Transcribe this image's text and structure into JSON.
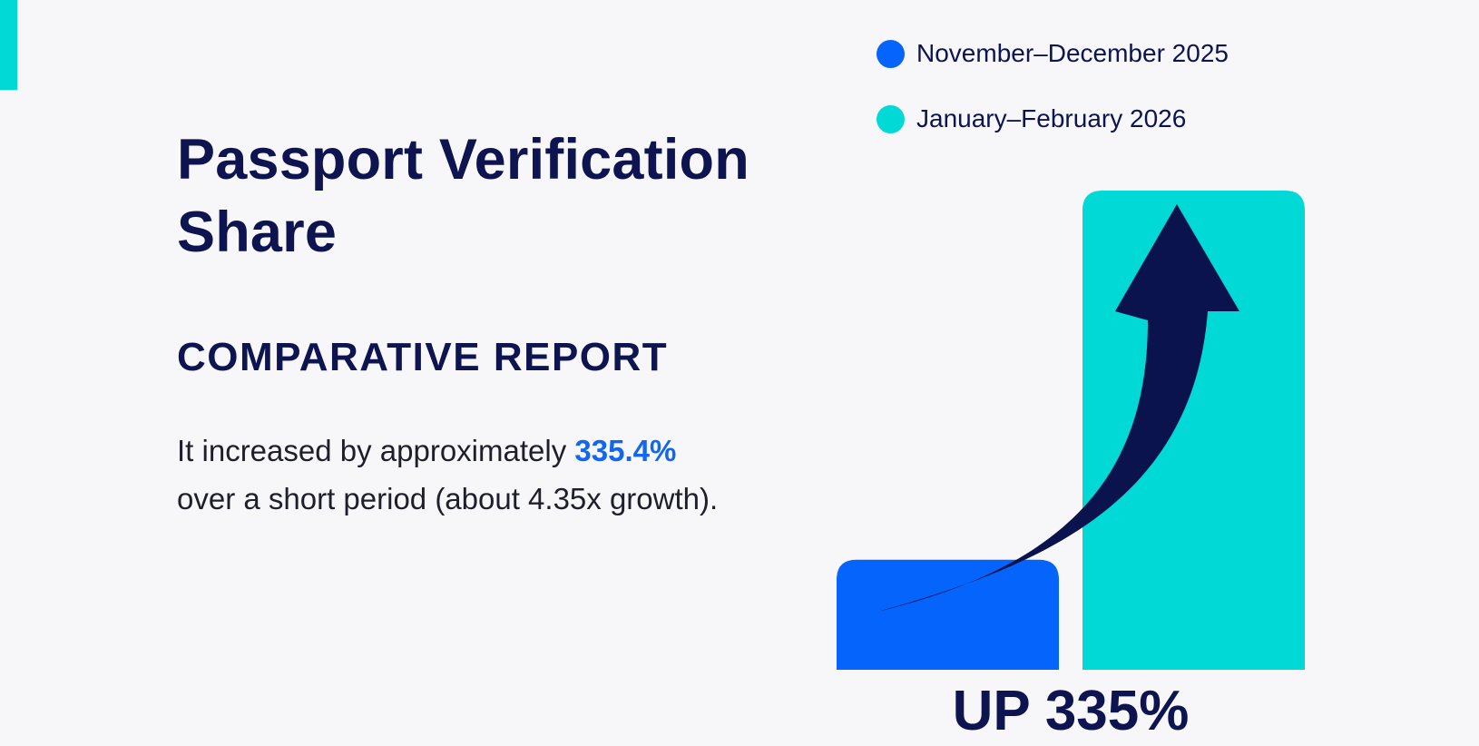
{
  "page": {
    "title": "Passport Verification Share",
    "subtitle": "COMPARATIVE REPORT",
    "body_prefix": "It increased by approximately",
    "body_highlight": "335.4%",
    "body_suffix": "over a short period (about 4.35x growth).",
    "callout": "UP 335%"
  },
  "colors": {
    "accent": "#00d9d6",
    "title": "#0d1450",
    "highlight": "#1366f0",
    "arrow": "#0b134e"
  },
  "chart_data": {
    "type": "bar",
    "categories": [
      "November–December 2025",
      "January–February 2026"
    ],
    "values": [
      1,
      4.354
    ],
    "colors": [
      "#0564fb",
      "#00d9d6"
    ],
    "legend": [
      "November–December 2025",
      "January–February 2026"
    ],
    "legend_position": "top",
    "annotation": "UP 335%",
    "ylim": [
      0,
      4.354
    ],
    "grid": false,
    "axes_visible": false,
    "icon": "upward-trend-arrow-icon"
  }
}
